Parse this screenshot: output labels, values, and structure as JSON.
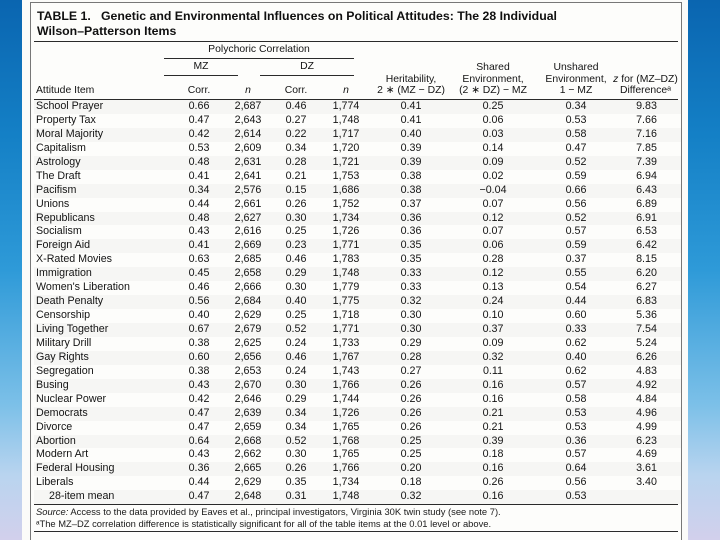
{
  "slide": {
    "background_top_color": "#0a65b0",
    "background_mid_color": "#2e9ad8",
    "background_bottom_color": "#d2d0ec",
    "panel_color": "#fbfbf9"
  },
  "table": {
    "title": "TABLE 1.   Genetic and Environmental Influences on Political Attitudes: The 28 Individual\nWilson–Patterson Items",
    "header": {
      "attitude_item": "Attitude Item",
      "polychoric": "Polychoric Correlation",
      "mz": "MZ",
      "dz": "DZ",
      "corr_mz": "Corr.",
      "n_mz": "n",
      "corr_dz": "Corr.",
      "n_dz": "n",
      "heritability": "Heritability,\n2 ∗ (MZ − DZ)",
      "shared_env": "Shared\nEnvironment,\n(2 ∗ DZ) − MZ",
      "unshared_env": "Unshared\nEnvironment,\n1 − MZ",
      "z_prefix": "z",
      "z_rest": " for (MZ–DZ)",
      "z_line2": "Differenceᵃ"
    },
    "rows": [
      {
        "item": "School Prayer",
        "values": [
          "0.66",
          "2,687",
          "0.46",
          "1,774",
          "0.41",
          "0.25",
          "0.34",
          "9.83"
        ]
      },
      {
        "item": "Property Tax",
        "values": [
          "0.47",
          "2,643",
          "0.27",
          "1,748",
          "0.41",
          "0.06",
          "0.53",
          "7.66"
        ]
      },
      {
        "item": "Moral Majority",
        "values": [
          "0.42",
          "2,614",
          "0.22",
          "1,717",
          "0.40",
          "0.03",
          "0.58",
          "7.16"
        ]
      },
      {
        "item": "Capitalism",
        "values": [
          "0.53",
          "2,609",
          "0.34",
          "1,720",
          "0.39",
          "0.14",
          "0.47",
          "7.85"
        ]
      },
      {
        "item": "Astrology",
        "values": [
          "0.48",
          "2,631",
          "0.28",
          "1,721",
          "0.39",
          "0.09",
          "0.52",
          "7.39"
        ]
      },
      {
        "item": "The Draft",
        "values": [
          "0.41",
          "2,641",
          "0.21",
          "1,753",
          "0.38",
          "0.02",
          "0.59",
          "6.94"
        ]
      },
      {
        "item": "Pacifism",
        "values": [
          "0.34",
          "2,576",
          "0.15",
          "1,686",
          "0.38",
          "−0.04",
          "0.66",
          "6.43"
        ]
      },
      {
        "item": "Unions",
        "values": [
          "0.44",
          "2,661",
          "0.26",
          "1,752",
          "0.37",
          "0.07",
          "0.56",
          "6.89"
        ]
      },
      {
        "item": "Republicans",
        "values": [
          "0.48",
          "2,627",
          "0.30",
          "1,734",
          "0.36",
          "0.12",
          "0.52",
          "6.91"
        ]
      },
      {
        "item": "Socialism",
        "values": [
          "0.43",
          "2,616",
          "0.25",
          "1,726",
          "0.36",
          "0.07",
          "0.57",
          "6.53"
        ]
      },
      {
        "item": "Foreign Aid",
        "values": [
          "0.41",
          "2,669",
          "0.23",
          "1,771",
          "0.35",
          "0.06",
          "0.59",
          "6.42"
        ]
      },
      {
        "item": "X-Rated Movies",
        "values": [
          "0.63",
          "2,685",
          "0.46",
          "1,783",
          "0.35",
          "0.28",
          "0.37",
          "8.15"
        ]
      },
      {
        "item": "Immigration",
        "values": [
          "0.45",
          "2,658",
          "0.29",
          "1,748",
          "0.33",
          "0.12",
          "0.55",
          "6.20"
        ]
      },
      {
        "item": "Women's Liberation",
        "values": [
          "0.46",
          "2,666",
          "0.30",
          "1,779",
          "0.33",
          "0.13",
          "0.54",
          "6.27"
        ]
      },
      {
        "item": "Death Penalty",
        "values": [
          "0.56",
          "2,684",
          "0.40",
          "1,775",
          "0.32",
          "0.24",
          "0.44",
          "6.83"
        ]
      },
      {
        "item": "Censorship",
        "values": [
          "0.40",
          "2,629",
          "0.25",
          "1,718",
          "0.30",
          "0.10",
          "0.60",
          "5.36"
        ]
      },
      {
        "item": "Living Together",
        "values": [
          "0.67",
          "2,679",
          "0.52",
          "1,771",
          "0.30",
          "0.37",
          "0.33",
          "7.54"
        ]
      },
      {
        "item": "Military Drill",
        "values": [
          "0.38",
          "2,625",
          "0.24",
          "1,733",
          "0.29",
          "0.09",
          "0.62",
          "5.24"
        ]
      },
      {
        "item": "Gay Rights",
        "values": [
          "0.60",
          "2,656",
          "0.46",
          "1,767",
          "0.28",
          "0.32",
          "0.40",
          "6.26"
        ]
      },
      {
        "item": "Segregation",
        "values": [
          "0.38",
          "2,653",
          "0.24",
          "1,743",
          "0.27",
          "0.11",
          "0.62",
          "4.83"
        ]
      },
      {
        "item": "Busing",
        "values": [
          "0.43",
          "2,670",
          "0.30",
          "1,766",
          "0.26",
          "0.16",
          "0.57",
          "4.92"
        ]
      },
      {
        "item": "Nuclear Power",
        "values": [
          "0.42",
          "2,646",
          "0.29",
          "1,744",
          "0.26",
          "0.16",
          "0.58",
          "4.84"
        ]
      },
      {
        "item": "Democrats",
        "values": [
          "0.47",
          "2,639",
          "0.34",
          "1,726",
          "0.26",
          "0.21",
          "0.53",
          "4.96"
        ]
      },
      {
        "item": "Divorce",
        "values": [
          "0.47",
          "2,659",
          "0.34",
          "1,765",
          "0.26",
          "0.21",
          "0.53",
          "4.99"
        ]
      },
      {
        "item": "Abortion",
        "values": [
          "0.64",
          "2,668",
          "0.52",
          "1,768",
          "0.25",
          "0.39",
          "0.36",
          "6.23"
        ]
      },
      {
        "item": "Modern Art",
        "values": [
          "0.43",
          "2,662",
          "0.30",
          "1,765",
          "0.25",
          "0.18",
          "0.57",
          "4.69"
        ]
      },
      {
        "item": "Federal Housing",
        "values": [
          "0.36",
          "2,665",
          "0.26",
          "1,766",
          "0.20",
          "0.16",
          "0.64",
          "3.61"
        ]
      },
      {
        "item": "Liberals",
        "values": [
          "0.44",
          "2,629",
          "0.35",
          "1,734",
          "0.18",
          "0.26",
          "0.56",
          "3.40"
        ]
      },
      {
        "item": "28-item mean",
        "indent": true,
        "values": [
          "0.47",
          "2,648",
          "0.31",
          "1,748",
          "0.32",
          "0.16",
          "0.53",
          ""
        ]
      }
    ],
    "source_label": "Source:",
    "source_text": " Access to the data provided by Eaves et al., principal investigators, Virginia 30K twin study (see note 7).",
    "footnote": "ᵃThe MZ–DZ correlation difference is statistically significant for all of the table items at the 0.01 level or above."
  }
}
